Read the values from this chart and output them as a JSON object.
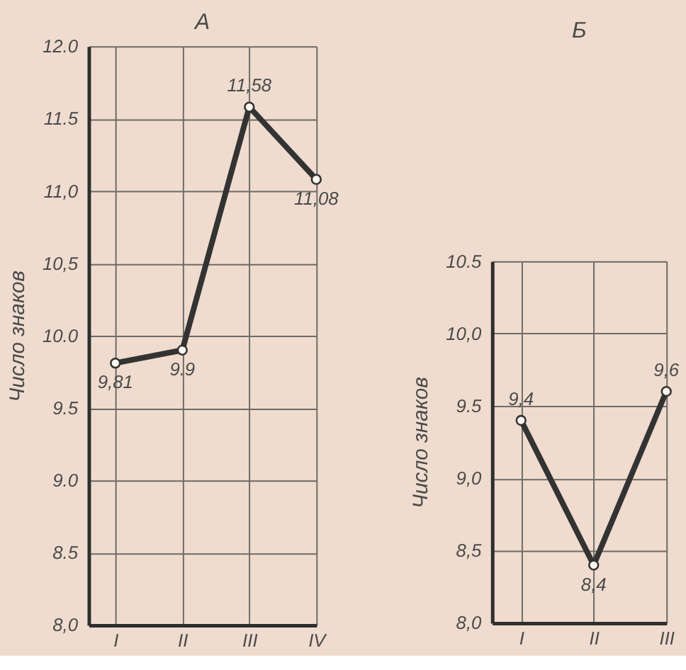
{
  "chart_data": [
    {
      "type": "line",
      "title": "А",
      "ylabel": "Число знаков",
      "categories": [
        "I",
        "II",
        "III",
        "IV"
      ],
      "series": [
        {
          "color": "#333333",
          "values": [
            9.81,
            9.9,
            11.58,
            11.08
          ],
          "value_labels": [
            "9,81",
            "9.9",
            "11,58",
            "11,08"
          ]
        }
      ],
      "ylim": [
        8,
        12
      ],
      "yticks": [
        {
          "value": 8,
          "label": "8,0"
        },
        {
          "value": 8.5,
          "label": "8.5"
        },
        {
          "value": 9,
          "label": "9.0"
        },
        {
          "value": 9.5,
          "label": "9.5"
        },
        {
          "value": 10,
          "label": "10.0"
        },
        {
          "value": 10.5,
          "label": "10,5"
        },
        {
          "value": 11,
          "label": "11,0"
        },
        {
          "value": 11.5,
          "label": "11.5"
        },
        {
          "value": 12,
          "label": "12.0"
        }
      ],
      "grid": true,
      "marker": "circle",
      "line_style": "solid"
    },
    {
      "type": "line",
      "title": "Б",
      "ylabel": "Число знаков",
      "categories": [
        "I",
        "II",
        "III"
      ],
      "series": [
        {
          "color": "#333333",
          "values": [
            9.4,
            8.4,
            9.6
          ],
          "value_labels": [
            "9,4",
            "8,4",
            "9,6"
          ]
        }
      ],
      "ylim": [
        8,
        10.5
      ],
      "yticks": [
        {
          "value": 8,
          "label": "8,0"
        },
        {
          "value": 8.5,
          "label": "8,5"
        },
        {
          "value": 9,
          "label": "9,0"
        },
        {
          "value": 9.5,
          "label": "9.5"
        },
        {
          "value": 10,
          "label": "10,0"
        },
        {
          "value": 10.5,
          "label": "10.5"
        }
      ],
      "grid": true,
      "marker": "circle",
      "line_style": "solid"
    }
  ]
}
